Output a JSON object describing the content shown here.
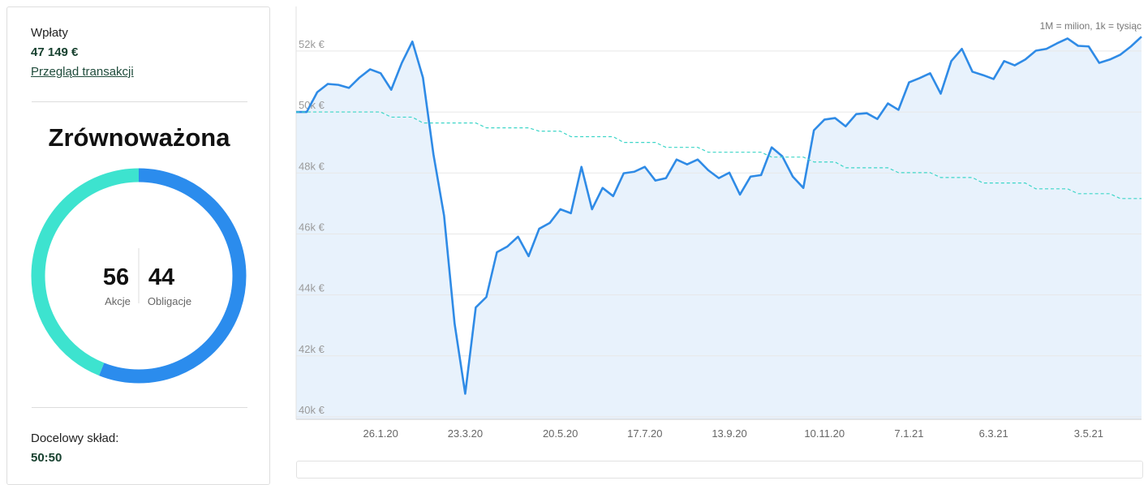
{
  "sidebar": {
    "deposits_label": "Wpłaty",
    "deposits_value": "47 149 €",
    "transactions_link": "Przegląd transakcji",
    "portfolio_name": "Zrównoważona",
    "allocation": {
      "type": "pie",
      "categories": [
        "Akcje",
        "Obligacje"
      ],
      "values": [
        56,
        44
      ],
      "colors": [
        "#2b8ced",
        "#3de3cf"
      ]
    },
    "target_label": "Docelowy skład:",
    "target_value": "50:50"
  },
  "chart_data": {
    "type": "line",
    "annotation": "1M = milion, 1k = tysiąc",
    "categories": [
      null,
      null,
      null,
      null,
      null,
      null,
      null,
      null,
      "26.1.20",
      null,
      null,
      null,
      null,
      null,
      null,
      null,
      "23.3.20",
      null,
      null,
      null,
      null,
      null,
      null,
      null,
      null,
      "20.5.20",
      null,
      null,
      null,
      null,
      null,
      null,
      null,
      "17.7.20",
      null,
      null,
      null,
      null,
      null,
      null,
      null,
      "13.9.20",
      null,
      null,
      null,
      null,
      null,
      null,
      null,
      null,
      "10.11.20",
      null,
      null,
      null,
      null,
      null,
      null,
      null,
      "7.1.21",
      null,
      null,
      null,
      null,
      null,
      null,
      null,
      "6.3.21",
      null,
      null,
      null,
      null,
      null,
      null,
      null,
      null,
      "3.5.21",
      null,
      null,
      null,
      null,
      null
    ],
    "series": [
      {
        "color": "#2f8be6",
        "area": true,
        "values": [
          50000,
          50000,
          50650,
          50920,
          50890,
          50790,
          51130,
          51400,
          51270,
          50730,
          51610,
          52310,
          51130,
          48600,
          46600,
          43050,
          40760,
          43590,
          43930,
          45400,
          45590,
          45910,
          45270,
          46170,
          46360,
          46810,
          46680,
          48200,
          46810,
          47510,
          47240,
          47990,
          48040,
          48200,
          47750,
          47830,
          48440,
          48280,
          48440,
          48090,
          47830,
          48010,
          47290,
          47880,
          47930,
          48840,
          48550,
          47880,
          47510,
          49400,
          49750,
          49800,
          49530,
          49930,
          49960,
          49770,
          50280,
          50070,
          50970,
          51110,
          51270,
          50600,
          51670,
          52070,
          51320,
          51210,
          51080,
          51670,
          51530,
          51720,
          52010,
          52070,
          52250,
          52410,
          52170,
          52150,
          51610,
          51720,
          51880,
          52150,
          52470
        ]
      },
      {
        "color": "#3dd6c8",
        "dashed": true,
        "values": [
          50000,
          50000,
          50000,
          50000,
          50000,
          50000,
          50000,
          50000,
          50000,
          49830,
          49830,
          49830,
          49640,
          49640,
          49640,
          49640,
          49640,
          49640,
          49480,
          49480,
          49480,
          49480,
          49480,
          49370,
          49370,
          49370,
          49190,
          49190,
          49190,
          49190,
          49190,
          49000,
          49000,
          49000,
          49000,
          48840,
          48840,
          48840,
          48840,
          48680,
          48680,
          48680,
          48680,
          48680,
          48680,
          48520,
          48520,
          48520,
          48520,
          48360,
          48360,
          48360,
          48170,
          48170,
          48170,
          48170,
          48170,
          48010,
          48010,
          48010,
          48010,
          47850,
          47850,
          47850,
          47850,
          47670,
          47670,
          47670,
          47670,
          47670,
          47480,
          47480,
          47480,
          47480,
          47320,
          47320,
          47320,
          47320,
          47160,
          47160,
          47160
        ]
      }
    ],
    "ylim": [
      39920,
      53460
    ],
    "yticks": [
      {
        "value": 40000,
        "label": "40k €"
      },
      {
        "value": 42000,
        "label": "42k €"
      },
      {
        "value": 44000,
        "label": "44k €"
      },
      {
        "value": 46000,
        "label": "46k €"
      },
      {
        "value": 48000,
        "label": "48k €"
      },
      {
        "value": 50000,
        "label": "50k €"
      },
      {
        "value": 52000,
        "label": "52k €"
      }
    ],
    "grid": true
  }
}
